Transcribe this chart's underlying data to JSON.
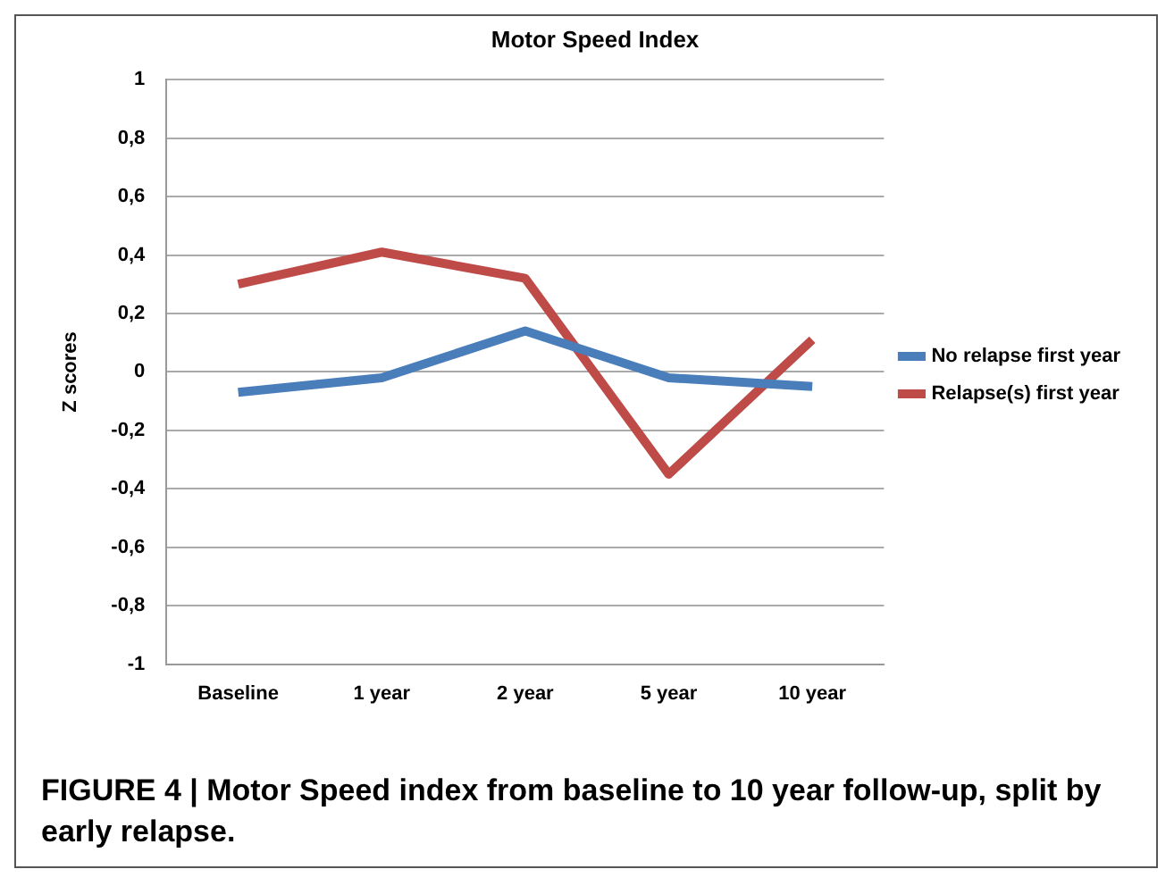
{
  "chart_data": {
    "type": "line",
    "title": "Motor Speed Index",
    "ylabel": "Z scores",
    "categories": [
      "Baseline",
      "1 year",
      "2 year",
      "5 year",
      "10 year"
    ],
    "series": [
      {
        "name": "No relapse first year",
        "color": "#4a7ebb",
        "values": [
          -0.07,
          -0.02,
          0.14,
          -0.02,
          -0.05
        ]
      },
      {
        "name": "Relapse(s) first year",
        "color": "#be4b48",
        "values": [
          0.3,
          0.41,
          0.32,
          -0.35,
          0.11
        ]
      }
    ],
    "ylim": [
      -1,
      1
    ],
    "yticks": [
      -1,
      {
        "value": -0.8,
        "label": "-0,8"
      },
      {
        "value": -0.6,
        "label": "-0,6"
      },
      {
        "value": -0.4,
        "label": "-0,4"
      },
      {
        "value": -0.2,
        "label": "-0,2"
      },
      0,
      {
        "value": 0.2,
        "label": "0,2"
      },
      {
        "value": 0.4,
        "label": "0,4"
      },
      {
        "value": 0.6,
        "label": "0,6"
      },
      {
        "value": 0.8,
        "label": "0,8"
      },
      1
    ],
    "grid": "y",
    "legend": "right",
    "marker": "none",
    "line_style": "solid",
    "annotations": [
      "FIGURE 4 | Motor Speed index from baseline to 10 year follow-up, split by early relapse."
    ]
  }
}
